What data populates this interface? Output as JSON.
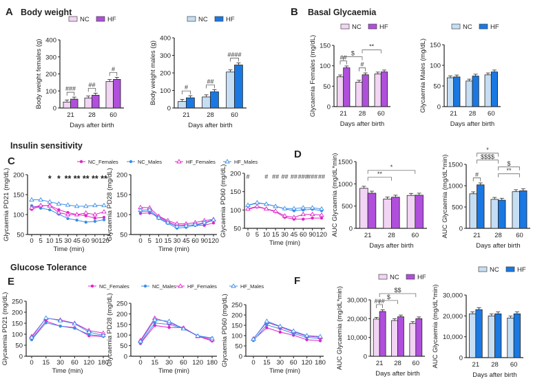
{
  "colors": {
    "nc_female": "#f2d4f4",
    "hf_female": "#b04fdc",
    "nc_male": "#c6def4",
    "hf_male": "#1a78e2",
    "line_female": "#e024c8",
    "line_male": "#3a8ee8",
    "axis": "#222222"
  },
  "panels": [
    {
      "letter": "A",
      "title": "Body weight"
    },
    {
      "letter": "B",
      "title": "Basal Glycaemia"
    },
    {
      "letter": "",
      "title": "Insulin sensitivity"
    },
    {
      "letter": "C",
      "title": ""
    },
    {
      "letter": "D",
      "title": ""
    },
    {
      "letter": "",
      "title": "Glucose Tolerance"
    },
    {
      "letter": "E",
      "title": ""
    },
    {
      "letter": "F",
      "title": ""
    }
  ],
  "line_legend": [
    "NC_Females",
    "NC_Males",
    "HF_Females",
    "HF_Males"
  ],
  "chart_data": [
    {
      "id": "A_f",
      "type": "bar",
      "xlabel": "Days after birth",
      "ylabel": "Body weight  females (g)",
      "categories": [
        "21",
        "28",
        "60"
      ],
      "ylim": [
        0,
        400
      ],
      "yticks": [
        "0",
        "100",
        "200",
        "300",
        "400"
      ],
      "ytick_values": [
        0,
        100,
        200,
        300,
        400
      ],
      "sex": "female",
      "legend": [
        "NC",
        "HF"
      ],
      "series": [
        {
          "name": "NC",
          "values": [
            35,
            58,
            155
          ]
        },
        {
          "name": "HF",
          "values": [
            52,
            75,
            168
          ]
        }
      ],
      "annotations": [
        {
          "text": "###",
          "category": "21"
        },
        {
          "text": "##",
          "category": "28"
        },
        {
          "text": "#",
          "category": "60"
        }
      ]
    },
    {
      "id": "A_m",
      "type": "bar",
      "xlabel": "Days after birth",
      "ylabel": "Body weight males (g)",
      "categories": [
        "21",
        "28",
        "60"
      ],
      "ylim": [
        0,
        400
      ],
      "yticks": [
        "0",
        "100",
        "200",
        "300",
        "400"
      ],
      "ytick_values": [
        0,
        100,
        200,
        300,
        400
      ],
      "sex": "male",
      "legend": [
        "NC",
        "HF"
      ],
      "series": [
        {
          "name": "NC",
          "values": [
            37,
            63,
            205
          ]
        },
        {
          "name": "HF",
          "values": [
            58,
            92,
            245
          ]
        }
      ],
      "annotations": [
        {
          "text": "#",
          "category": "21"
        },
        {
          "text": "##",
          "category": "28"
        },
        {
          "text": "####",
          "category": "60"
        }
      ]
    },
    {
      "id": "B_f",
      "type": "bar",
      "xlabel": "Days after birth",
      "ylabel": "Glycaemia Females (mg/dL)",
      "categories": [
        "21",
        "28",
        "60"
      ],
      "ylim": [
        0,
        150
      ],
      "yticks": [
        "0",
        "50",
        "100",
        "150"
      ],
      "ytick_values": [
        0,
        50,
        100,
        150
      ],
      "sex": "female",
      "legend": [
        "NC",
        "HF"
      ],
      "series": [
        {
          "name": "NC",
          "values": [
            73,
            60,
            80
          ]
        },
        {
          "name": "HF",
          "values": [
            95,
            78,
            85
          ]
        }
      ],
      "annotations": [
        {
          "text": "##",
          "category": "21"
        },
        {
          "text": "#",
          "category": "28"
        },
        {
          "text": "$",
          "from": "21",
          "to": "28",
          "level": 0
        },
        {
          "text": "**",
          "from": "28",
          "to": "60",
          "level": 1
        }
      ]
    },
    {
      "id": "B_m",
      "type": "bar",
      "xlabel": "Days after birth",
      "ylabel": "Glycaemia Males (mg/dL)",
      "categories": [
        "21",
        "28",
        "60"
      ],
      "ylim": [
        0,
        150
      ],
      "yticks": [
        "0",
        "50",
        "100",
        "150"
      ],
      "ytick_values": [
        0,
        50,
        100,
        150
      ],
      "sex": "male",
      "legend": [
        "NC",
        "HF"
      ],
      "series": [
        {
          "name": "NC",
          "values": [
            70,
            62,
            77
          ]
        },
        {
          "name": "HF",
          "values": [
            72,
            74,
            84
          ]
        }
      ],
      "annotations": []
    },
    {
      "id": "C_21",
      "type": "line",
      "xlabel": "Time (min)",
      "ylabel": "Glycaemia PD21 (mg/dL)",
      "categories": [
        "0",
        "5",
        "10",
        "15",
        "30",
        "45",
        "60",
        "90",
        "120"
      ],
      "ylim": [
        50,
        200
      ],
      "yticks": [
        "50",
        "100",
        "150",
        "200"
      ],
      "ytick_values": [
        50,
        100,
        150,
        200
      ],
      "series": [
        {
          "name": "NC_Females",
          "values": [
            113,
            122,
            123,
            112,
            105,
            100,
            97,
            91,
            93
          ]
        },
        {
          "name": "NC_Males",
          "values": [
            122,
            116,
            112,
            101,
            90,
            86,
            81,
            83,
            87
          ]
        },
        {
          "name": "HF_Females",
          "values": [
            117,
            123,
            122,
            105,
            100,
            100,
            104,
            100,
            107
          ]
        },
        {
          "name": "HF_Males",
          "values": [
            137,
            137,
            132,
            127,
            124,
            121,
            121,
            123,
            123
          ]
        }
      ],
      "annotations": [
        {
          "text": "*",
          "category": "10"
        },
        {
          "text": "*",
          "category": "15"
        },
        {
          "text": "**",
          "category": "30"
        },
        {
          "text": "**",
          "category": "45"
        },
        {
          "text": "**",
          "category": "60"
        },
        {
          "text": "**",
          "category": "90"
        },
        {
          "text": "**",
          "category": "120"
        }
      ]
    },
    {
      "id": "C_28",
      "type": "line",
      "xlabel": "Time (min)",
      "ylabel": "Glycaemia PD28 (mg/dL)",
      "categories": [
        "0",
        "5",
        "10",
        "15",
        "30",
        "45",
        "60",
        "90",
        "120"
      ],
      "ylim": [
        50,
        200
      ],
      "yticks": [
        "50",
        "100",
        "150",
        "200"
      ],
      "ytick_values": [
        50,
        100,
        150,
        200
      ],
      "series": [
        {
          "name": "NC_Females",
          "values": [
            103,
            104,
            95,
            82,
            73,
            74,
            73,
            73,
            79
          ]
        },
        {
          "name": "NC_Males",
          "values": [
            108,
            108,
            90,
            78,
            66,
            68,
            73,
            78,
            86
          ]
        },
        {
          "name": "HF_Females",
          "values": [
            118,
            117,
            96,
            85,
            77,
            77,
            80,
            85,
            88
          ]
        },
        {
          "name": "HF_Males",
          "values": [
            111,
            112,
            92,
            80,
            70,
            72,
            75,
            80,
            87
          ]
        }
      ],
      "annotations": []
    },
    {
      "id": "C_60",
      "type": "line",
      "xlabel": "Time (min)",
      "ylabel": "Glycaemia PD60 (mg/dL)",
      "categories": [
        "0",
        "5",
        "10",
        "15",
        "30",
        "45",
        "60",
        "90",
        "120"
      ],
      "ylim": [
        50,
        200
      ],
      "yticks": [
        "50",
        "100",
        "150",
        "200"
      ],
      "ytick_values": [
        50,
        100,
        150,
        200
      ],
      "series": [
        {
          "name": "NC_Females",
          "values": [
            102,
            108,
            103,
            95,
            80,
            75,
            75,
            78,
            78
          ]
        },
        {
          "name": "NC_Males",
          "values": [
            112,
            119,
            116,
            110,
            103,
            98,
            100,
            102,
            98
          ]
        },
        {
          "name": "HF_Females",
          "values": [
            103,
            110,
            103,
            97,
            84,
            80,
            88,
            88,
            86
          ]
        },
        {
          "name": "HF_Males",
          "values": [
            113,
            120,
            116,
            110,
            104,
            104,
            106,
            106,
            103
          ]
        }
      ],
      "annotations": [
        {
          "text": "#",
          "category": "0"
        },
        {
          "text": "#",
          "category": "10"
        },
        {
          "text": "##",
          "category": "15"
        },
        {
          "text": "##",
          "category": "30"
        },
        {
          "text": "##",
          "category": "45"
        },
        {
          "text": "###",
          "category": "60"
        },
        {
          "text": "###",
          "category": "90"
        },
        {
          "text": "##",
          "category": "120"
        }
      ]
    },
    {
      "id": "D_f",
      "type": "bar",
      "xlabel": "Days after birth",
      "ylabel": "AUC Glycaemia (mg/dL*min)",
      "categories": [
        "21",
        "28",
        "60"
      ],
      "ylim": [
        0,
        1500
      ],
      "yticks": [
        "0",
        "500",
        "1000",
        "1500"
      ],
      "ytick_values": [
        0,
        500,
        1000,
        1500
      ],
      "sex": "female",
      "series": [
        {
          "name": "NC",
          "values": [
            900,
            660,
            740
          ]
        },
        {
          "name": "HF",
          "values": [
            790,
            700,
            745
          ]
        }
      ],
      "annotations": [
        {
          "text": "**",
          "from": "21",
          "to": "28",
          "level": 0
        },
        {
          "text": "*",
          "from": "21",
          "to": "60",
          "level": 1
        }
      ]
    },
    {
      "id": "D_m",
      "type": "bar",
      "xlabel": "Days after birth",
      "ylabel": "AUC Glycaemia (mg/dL*min)",
      "categories": [
        "21",
        "28",
        "60"
      ],
      "ylim": [
        0,
        1500
      ],
      "yticks": [
        "0",
        "500",
        "1000",
        "1500"
      ],
      "ytick_values": [
        0,
        500,
        1000,
        1500
      ],
      "sex": "male",
      "series": [
        {
          "name": "NC",
          "values": [
            810,
            680,
            860
          ]
        },
        {
          "name": "HF",
          "values": [
            1020,
            660,
            880
          ]
        }
      ],
      "annotations": [
        {
          "text": "#",
          "category": "21"
        },
        {
          "text": "**",
          "from": "28",
          "to": "60",
          "level": 0
        },
        {
          "text": "$",
          "from": "28",
          "to": "60",
          "level": 1
        },
        {
          "text": "$$$$",
          "from": "21",
          "to": "28",
          "level": 2
        },
        {
          "text": "*",
          "from": "21",
          "to": "28",
          "level": 3
        }
      ]
    },
    {
      "id": "E_21",
      "type": "line",
      "xlabel": "Time (min)",
      "ylabel": "Glycaemia PD21 (mg/dL)",
      "categories": [
        "0",
        "15",
        "30",
        "60",
        "120",
        "180"
      ],
      "ylim": [
        0,
        250
      ],
      "yticks": [
        "0",
        "50",
        "100",
        "150",
        "200",
        "250"
      ],
      "ytick_values": [
        0,
        50,
        100,
        150,
        200,
        250
      ],
      "series": [
        {
          "name": "NC_Females",
          "values": [
            78,
            160,
            137,
            130,
            93,
            90
          ]
        },
        {
          "name": "NC_Males",
          "values": [
            75,
            152,
            137,
            127,
            99,
            91
          ]
        },
        {
          "name": "HF_Females",
          "values": [
            90,
            173,
            165,
            150,
            117,
            105
          ]
        },
        {
          "name": "HF_Males",
          "values": [
            85,
            174,
            162,
            148,
            110,
            95
          ]
        }
      ],
      "annotations": []
    },
    {
      "id": "E_28",
      "type": "line",
      "xlabel": "Time (min)",
      "ylabel": "Glycaemia PD28 (mg/dL)",
      "categories": [
        "0",
        "15",
        "30",
        "60",
        "120",
        "180"
      ],
      "ylim": [
        0,
        250
      ],
      "yticks": [
        "0",
        "50",
        "100",
        "150",
        "200",
        "250"
      ],
      "ytick_values": [
        0,
        50,
        100,
        150,
        200,
        250
      ],
      "series": [
        {
          "name": "NC_Females",
          "values": [
            60,
            145,
            136,
            135,
            95,
            72
          ]
        },
        {
          "name": "NC_Males",
          "values": [
            63,
            157,
            150,
            131,
            97,
            86
          ]
        },
        {
          "name": "HF_Females",
          "values": [
            75,
            180,
            158,
            133,
            94,
            78
          ]
        },
        {
          "name": "HF_Males",
          "values": [
            70,
            172,
            165,
            130,
            96,
            84
          ]
        }
      ],
      "annotations": []
    },
    {
      "id": "E_60",
      "type": "line",
      "xlabel": "Time (min)",
      "ylabel": "Glycaemia PD60 (mg/dL)",
      "categories": [
        "0",
        "15",
        "30",
        "60",
        "120",
        "180"
      ],
      "ylim": [
        0,
        250
      ],
      "yticks": [
        "0",
        "50",
        "100",
        "150",
        "200",
        "250"
      ],
      "ytick_values": [
        0,
        50,
        100,
        150,
        200,
        250
      ],
      "series": [
        {
          "name": "NC_Females",
          "values": [
            80,
            138,
            117,
            102,
            80,
            75
          ]
        },
        {
          "name": "NC_Males",
          "values": [
            76,
            152,
            133,
            110,
            92,
            85
          ]
        },
        {
          "name": "HF_Females",
          "values": [
            85,
            165,
            143,
            118,
            98,
            92
          ]
        },
        {
          "name": "HF_Males",
          "values": [
            83,
            170,
            145,
            122,
            100,
            96
          ]
        }
      ],
      "annotations": []
    },
    {
      "id": "F_f",
      "type": "bar",
      "xlabel": "Days after birth",
      "ylabel": "AUC Glycaemia (mg/dL*min)",
      "categories": [
        "21",
        "28",
        "60"
      ],
      "ylim": [
        0,
        30000
      ],
      "yticks": [
        "0",
        "10,000",
        "20,000",
        "30,000"
      ],
      "ytick_values": [
        0,
        10000,
        20000,
        30000
      ],
      "sex": "female",
      "legend": [
        "NC",
        "HF"
      ],
      "series": [
        {
          "name": "NC",
          "values": [
            19800,
            19000,
            17500
          ]
        },
        {
          "name": "HF",
          "values": [
            23800,
            21000,
            20000
          ]
        }
      ],
      "annotations": [
        {
          "text": "###",
          "category": "21"
        },
        {
          "text": "$",
          "from": "21",
          "to": "28",
          "level": 0
        },
        {
          "text": "$$",
          "from": "21",
          "to": "60",
          "level": 1
        }
      ]
    },
    {
      "id": "F_m",
      "type": "bar",
      "xlabel": "Days after birth",
      "ylabel": "AUC Glycaemia (mg/dL*min)",
      "categories": [
        "21",
        "28",
        "60"
      ],
      "ylim": [
        0,
        30000
      ],
      "yticks": [
        "0",
        "10,000",
        "20,000",
        "30,000"
      ],
      "ytick_values": [
        0,
        10000,
        20000,
        30000
      ],
      "sex": "male",
      "legend": [
        "NC",
        "HF"
      ],
      "series": [
        {
          "name": "NC",
          "values": [
            21000,
            20000,
            19000
          ]
        },
        {
          "name": "HF",
          "values": [
            23000,
            21000,
            21000
          ]
        }
      ],
      "annotations": []
    }
  ]
}
